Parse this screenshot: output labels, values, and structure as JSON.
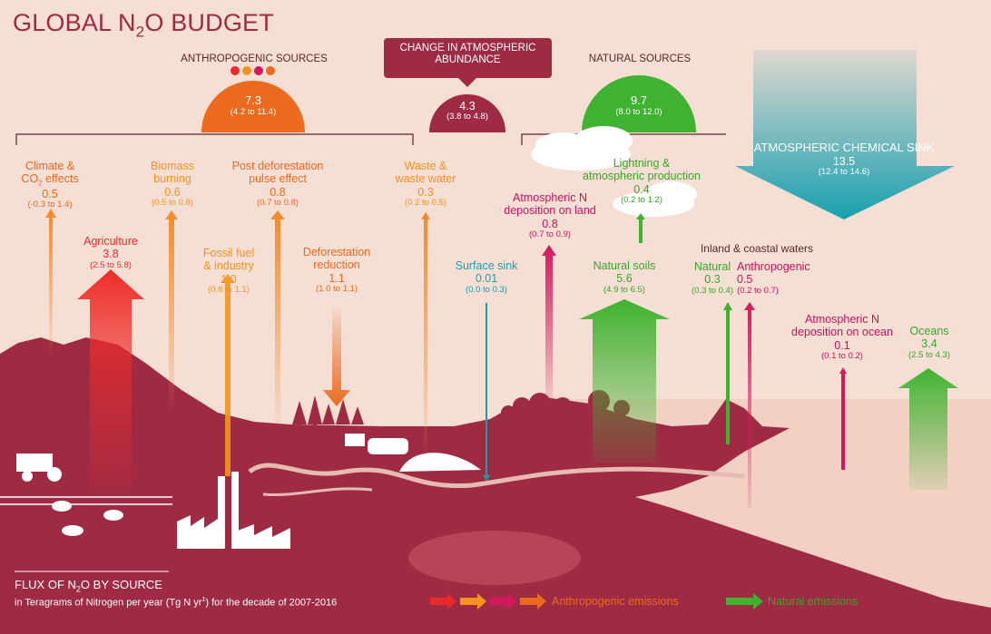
{
  "title": {
    "prefix": "GLOBAL N",
    "sub": "2",
    "suffix": "O BUDGET"
  },
  "headers": {
    "anthropogenic": "ANTHROPOGENIC SOURCES",
    "change": "CHANGE IN ATMOSPHERIC ABUNDANCE",
    "natural": "NATURAL SOURCES",
    "inland": "Inland & coastal waters"
  },
  "totals": {
    "anthropogenic": {
      "value": "7.3",
      "range": "(4.2 to 11.4)"
    },
    "change": {
      "value": "4.3",
      "range": "(3.8 to 4.8)"
    },
    "natural": {
      "value": "9.7",
      "range": "(8.0 to 12.0)"
    },
    "sink": {
      "label": "ATMOSPHERIC CHEMICAL SINK",
      "value": "13.5",
      "range": "(12.4 to 14.6)"
    }
  },
  "fluxes": {
    "climate": {
      "label1": "Climate &",
      "label2a": "CO",
      "label2sub": "2",
      "label2b": " effects",
      "value": "0.5",
      "range": "(-0.3 to 1.4)"
    },
    "agriculture": {
      "label": "Agriculture",
      "value": "3.8",
      "range": "(2.5 to 5.8)"
    },
    "biomass": {
      "label1": "Biomass",
      "label2": "burning",
      "value": "0.6",
      "range": "(0.5 to 0.8)"
    },
    "fossil": {
      "label1": "Fossil fuel",
      "label2": "& industry",
      "value": "1.0",
      "range": "(0.8 to 1.1)"
    },
    "postdef": {
      "label1": "Post deforestation",
      "label2": "pulse effect",
      "value": "0.8",
      "range": "(0.7 to 0.8)"
    },
    "defred": {
      "label1": "Deforestation",
      "label2": "reduction",
      "value": "1.1",
      "range": "(1.0 to 1.1)"
    },
    "waste": {
      "label1": "Waste &",
      "label2": "waste water",
      "value": "0.3",
      "range": "(0.2 to 0.5)"
    },
    "surface": {
      "label": "Surface sink",
      "value": "0.01",
      "range": "(0.0 to 0.3)"
    },
    "depland": {
      "label1": "Atmospheric N",
      "label2": "deposition on land",
      "value": "0.8",
      "range": "(0.7 to 0.9)"
    },
    "lightning": {
      "label1": "Lightning &",
      "label2": "atmospheric production",
      "value": "0.4",
      "range": "(0.2 to 1.2)"
    },
    "soils": {
      "label": "Natural soils",
      "value": "5.6",
      "range": "(4.9 to 6.5)"
    },
    "inlandnat": {
      "label": "Natural",
      "value": "0.3",
      "range": "(0.3 to 0.4)"
    },
    "inlandanth": {
      "label": "Anthropogenic",
      "value": "0.5",
      "range": "(0.2 to 0.7)"
    },
    "depocean": {
      "label1": "Atmospheric N",
      "label2": "deposition on ocean",
      "value": "0.1",
      "range": "(0.1 to 0.2)"
    },
    "oceans": {
      "label": "Oceans",
      "value": "3.4",
      "range": "(2.5 to 4.3)"
    }
  },
  "footer": {
    "flux_a": "FLUX OF N",
    "flux_sub": "2",
    "flux_b": "O BY SOURCE",
    "units_a": "in Teragrams of Nitrogen per year (Tg N yr",
    "units_sup": "1",
    "units_b": ") for the decade of 2007-2016"
  },
  "legend": {
    "anthropogenic": "Anthropogenic emissions",
    "natural": "Natural emissions"
  },
  "colors": {
    "wine": "#9e2a44",
    "orange": "#ec6a1e",
    "amber": "#f39321",
    "red": "#ea2a2a",
    "magenta": "#c8145d",
    "green": "#3aa52c",
    "teal": "#1a9fb0",
    "background": "#f5ded3"
  }
}
